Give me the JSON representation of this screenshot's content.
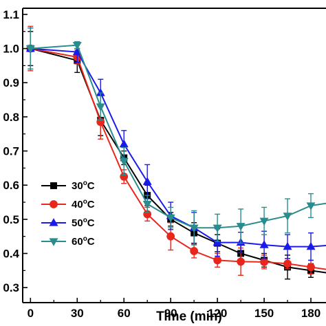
{
  "chart_data": {
    "type": "line",
    "title": "",
    "xlabel": "Time (min)",
    "ylabel": "",
    "xlim": [
      -5,
      195
    ],
    "ylim": [
      0.256,
      1.118
    ],
    "x_ticks": [
      0,
      30,
      60,
      90,
      120,
      150,
      180
    ],
    "x_tick_labels": [
      "0",
      "30",
      "60",
      "90",
      "120",
      "150",
      "180"
    ],
    "y_ticks": [
      0.3,
      0.4,
      0.5,
      0.6,
      0.7,
      0.8,
      0.9,
      1.0,
      1.1
    ],
    "y_tick_labels": [
      "0.3",
      "0.4",
      "0.5",
      "0.6",
      "0.7",
      "0.8",
      "0.9",
      "1.0",
      "1.1"
    ],
    "legend_placement": "lower-left",
    "grid": false,
    "series": [
      {
        "name": "30",
        "name_suffix": "°C",
        "superscript": "o",
        "marker": "square",
        "color": "#000000",
        "x": [
          0,
          30,
          45,
          60,
          75,
          90,
          105,
          120,
          135,
          150,
          165,
          180,
          195
        ],
        "y": [
          1.0,
          0.965,
          0.79,
          0.68,
          0.57,
          0.5,
          0.46,
          0.43,
          0.4,
          0.38,
          0.36,
          0.35,
          0.34
        ],
        "err": [
          0.05,
          0.035,
          0.045,
          0.02,
          0.03,
          0.02,
          0.03,
          0.025,
          0.025,
          0.02,
          0.035,
          0.02,
          0.02
        ]
      },
      {
        "name": "40",
        "name_suffix": "°C",
        "superscript": "o",
        "marker": "circle",
        "color": "#e8261c",
        "x": [
          0,
          30,
          45,
          60,
          75,
          90,
          105,
          120,
          135,
          150,
          165,
          180,
          195
        ],
        "y": [
          1.0,
          0.975,
          0.785,
          0.625,
          0.515,
          0.45,
          0.407,
          0.38,
          0.376,
          0.375,
          0.37,
          0.36,
          0.35
        ],
        "err": [
          0.065,
          0.02,
          0.05,
          0.02,
          0.02,
          0.04,
          0.02,
          0.02,
          0.04,
          0.02,
          0.015,
          0.02,
          0.03
        ]
      },
      {
        "name": "50",
        "name_suffix": "°C",
        "superscript": "o",
        "marker": "triangle-up",
        "color": "#1a1aeb",
        "x": [
          0,
          30,
          45,
          60,
          75,
          90,
          105,
          120,
          135,
          150,
          165,
          180,
          195
        ],
        "y": [
          1.0,
          0.99,
          0.87,
          0.72,
          0.61,
          0.51,
          0.475,
          0.432,
          0.432,
          0.425,
          0.42,
          0.42,
          0.425
        ],
        "err": [
          0.06,
          0.03,
          0.04,
          0.04,
          0.05,
          0.04,
          0.045,
          0.04,
          0.03,
          0.04,
          0.035,
          0.04,
          0.04
        ]
      },
      {
        "name": "60",
        "name_suffix": "°C",
        "superscript": "o",
        "marker": "triangle-down",
        "color": "#2a8c8c",
        "x": [
          0,
          30,
          45,
          60,
          75,
          90,
          105,
          120,
          135,
          150,
          165,
          180,
          195
        ],
        "y": [
          1.0,
          1.01,
          0.83,
          0.67,
          0.545,
          0.505,
          0.475,
          0.475,
          0.48,
          0.495,
          0.51,
          0.54,
          0.55
        ],
        "err": [
          0.06,
          0.01,
          0.04,
          0.04,
          0.025,
          0.03,
          0.05,
          0.04,
          0.05,
          0.04,
          0.05,
          0.035,
          0.03
        ]
      }
    ]
  }
}
